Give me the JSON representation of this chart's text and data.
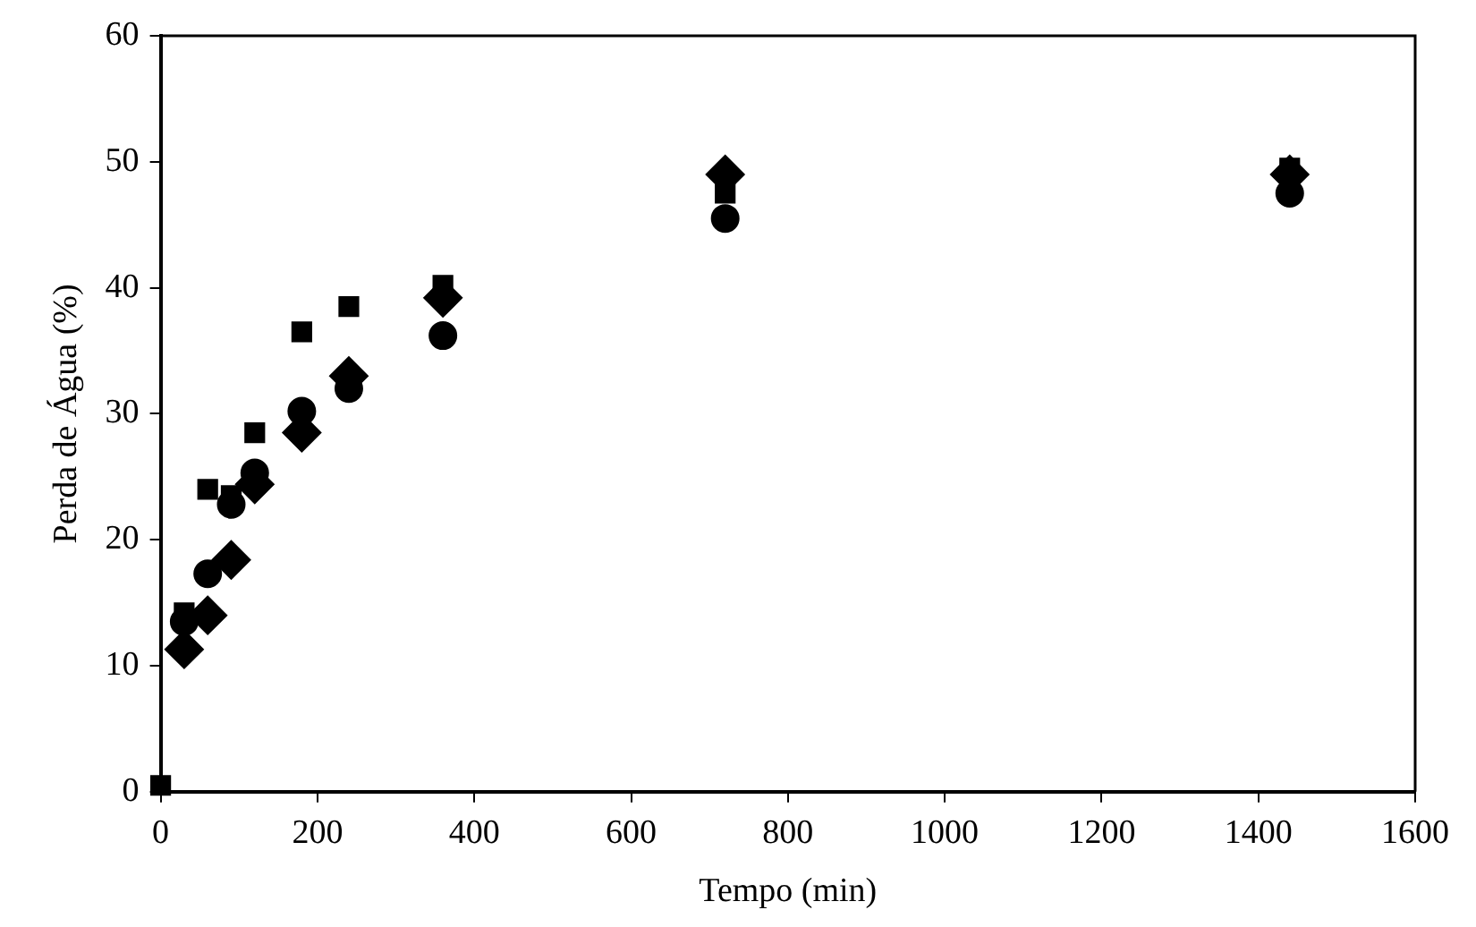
{
  "chart_data": {
    "type": "scatter",
    "xlabel": "Tempo (min)",
    "ylabel": "Perda de Água (%)",
    "xlim": [
      0,
      1600
    ],
    "xticks": [
      0,
      200,
      400,
      600,
      800,
      1000,
      1200,
      1400,
      1600
    ],
    "ylim": [
      0,
      60
    ],
    "yticks": [
      0,
      10,
      20,
      30,
      40,
      50,
      60
    ],
    "grid": false,
    "legend": false,
    "x": [
      0,
      30,
      60,
      90,
      120,
      180,
      240,
      360,
      720,
      1440
    ],
    "series": [
      {
        "color": "#000000",
        "marker": "square",
        "values": [
          0.5,
          14.2,
          24,
          23.5,
          28.5,
          36.5,
          38.5,
          40.2,
          47.5,
          49.5
        ]
      },
      {
        "color": "#000000",
        "marker": "circle",
        "values": [
          null,
          13.5,
          17.3,
          22.8,
          25.3,
          30.2,
          32,
          36.2,
          45.5,
          47.5
        ]
      },
      {
        "color": "#000000",
        "marker": "diamond",
        "values": [
          null,
          11.3,
          14,
          18.4,
          24.4,
          28.5,
          33,
          39.2,
          49,
          49
        ]
      }
    ]
  }
}
